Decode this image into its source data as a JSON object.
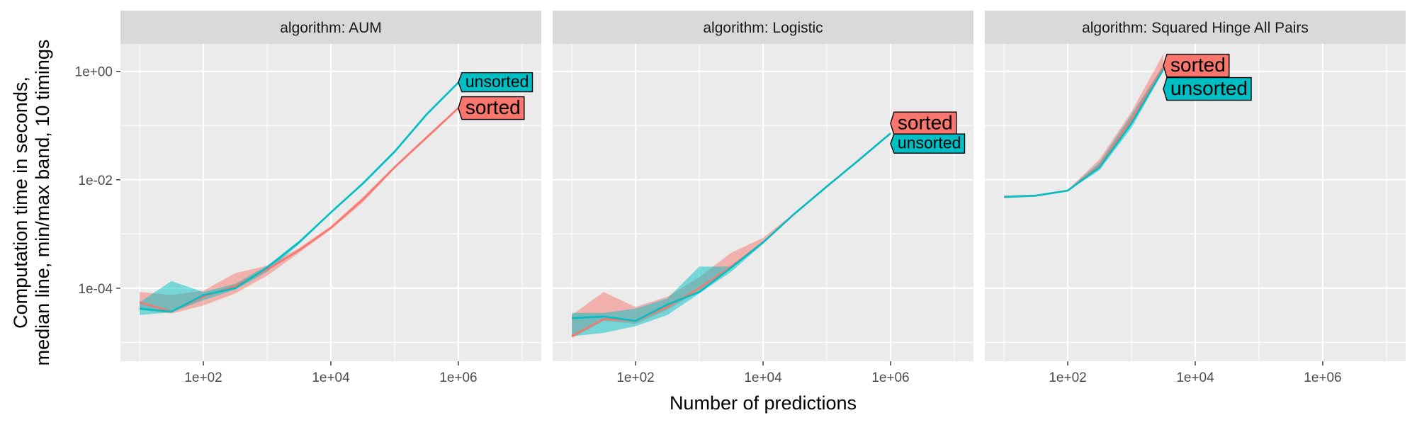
{
  "chart_data": {
    "type": "line",
    "title": "",
    "xlabel": "Number of predictions",
    "ylabel_lines": [
      "Computation time in seconds,",
      "median line, min/max band, 10 timings"
    ],
    "x_scale": "log10",
    "y_scale": "log10",
    "xlim": [
      5,
      20000000
    ],
    "ylim": [
      4.5e-06,
      3.2
    ],
    "x_ticks": [
      100,
      10000,
      1000000
    ],
    "x_tick_labels": [
      "1e+02",
      "1e+04",
      "1e+06"
    ],
    "y_ticks": [
      0.0001,
      0.01,
      1
    ],
    "y_tick_labels": [
      "1e-04",
      "1e-02",
      "1e+00"
    ],
    "grid": true,
    "legend": "direct labels at series ends",
    "colors": {
      "sorted": "#F8766D",
      "unsorted": "#00BFC4",
      "panel_bg": "#EBEBEB",
      "strip_bg": "#D9D9D9",
      "grid": "#FFFFFF"
    },
    "panels": [
      {
        "strip": "algorithm: AUM",
        "series": [
          {
            "name": "sorted",
            "x": [
              10,
              31.6,
              100,
              316,
              1000,
              3162,
              10000,
              31623,
              100000,
              316228,
              1000000
            ],
            "median": [
              5.5e-05,
              3.7e-05,
              7e-05,
              0.00011,
              0.00022,
              0.0005,
              0.0013,
              0.0043,
              0.017,
              0.06,
              0.21
            ],
            "min": [
              4e-05,
              3.4e-05,
              4.8e-05,
              8e-05,
              0.00017,
              0.00045,
              0.0012,
              0.0038,
              0.016,
              0.056,
              0.2
            ],
            "max": [
              8.5e-05,
              7.5e-05,
              9e-05,
              0.00019,
              0.00026,
              0.00055,
              0.0014,
              0.0048,
              0.018,
              0.064,
              0.22
            ],
            "label": "sorted"
          },
          {
            "name": "unsorted",
            "x": [
              10,
              31.6,
              100,
              316,
              1000,
              3162,
              10000,
              31623,
              100000,
              316228,
              1000000
            ],
            "median": [
              4.2e-05,
              3.7e-05,
              7.5e-05,
              0.0001,
              0.00024,
              0.0007,
              0.0025,
              0.0085,
              0.033,
              0.16,
              0.62
            ],
            "min": [
              3.2e-05,
              3.6e-05,
              6e-05,
              9.5e-05,
              0.0002,
              0.00065,
              0.0024,
              0.008,
              0.031,
              0.15,
              0.6
            ],
            "max": [
              5.5e-05,
              0.000135,
              8.5e-05,
              0.00012,
              0.00026,
              0.00075,
              0.0026,
              0.009,
              0.035,
              0.17,
              0.65
            ],
            "label": "unsorted"
          }
        ]
      },
      {
        "strip": "algorithm: Logistic",
        "series": [
          {
            "name": "sorted",
            "x": [
              10,
              31.6,
              100,
              316,
              1000,
              3162,
              10000,
              31623,
              100000,
              316228,
              1000000
            ],
            "median": [
              1.3e-05,
              2.7e-05,
              2.5e-05,
              4.5e-05,
              0.0001,
              0.00025,
              0.0007,
              0.0024,
              0.0075,
              0.023,
              0.072
            ],
            "min": [
              1.2e-05,
              2.5e-05,
              2.2e-05,
              4e-05,
              9e-05,
              0.00023,
              0.00066,
              0.0023,
              0.0072,
              0.022,
              0.07
            ],
            "max": [
              3.2e-05,
              8.5e-05,
              4.5e-05,
              7e-05,
              0.00016,
              0.00045,
              0.00085,
              0.0025,
              0.0078,
              0.024,
              0.075
            ],
            "label": "sorted"
          },
          {
            "name": "unsorted",
            "x": [
              10,
              31.6,
              100,
              316,
              1000,
              3162,
              10000,
              31623,
              100000,
              316228,
              1000000
            ],
            "median": [
              2.8e-05,
              3e-05,
              2.5e-05,
              5e-05,
              8.5e-05,
              0.00024,
              0.0007,
              0.0024,
              0.0075,
              0.023,
              0.072
            ],
            "min": [
              1.3e-05,
              1.5e-05,
              2e-05,
              3.2e-05,
              8e-05,
              0.0002,
              0.00066,
              0.0023,
              0.0072,
              0.022,
              0.07
            ],
            "max": [
              3.5e-05,
              3.5e-05,
              4.2e-05,
              6.5e-05,
              0.00025,
              0.00025,
              0.00072,
              0.0025,
              0.0078,
              0.024,
              0.075
            ],
            "label": "unsorted"
          }
        ]
      },
      {
        "strip": "algorithm: Squared Hinge All Pairs",
        "series": [
          {
            "name": "sorted",
            "x": [
              10,
              31.6,
              100,
              316,
              1000,
              3162
            ],
            "median": [
              0.0048,
              0.0051,
              0.0063,
              0.018,
              0.13,
              1.2
            ],
            "min": [
              0.0047,
              0.005,
              0.0062,
              0.016,
              0.11,
              1.0
            ],
            "max": [
              0.0051,
              0.0053,
              0.0065,
              0.024,
              0.18,
              2.1
            ],
            "label": "sorted"
          },
          {
            "name": "unsorted",
            "x": [
              10,
              31.6,
              100,
              316,
              1000,
              3162
            ],
            "median": [
              0.0048,
              0.0051,
              0.0063,
              0.017,
              0.11,
              1.1
            ],
            "min": [
              0.0047,
              0.005,
              0.0062,
              0.015,
              0.09,
              1.0
            ],
            "max": [
              0.0051,
              0.0053,
              0.0065,
              0.021,
              0.16,
              1.3
            ],
            "label": "unsorted"
          }
        ]
      }
    ]
  }
}
